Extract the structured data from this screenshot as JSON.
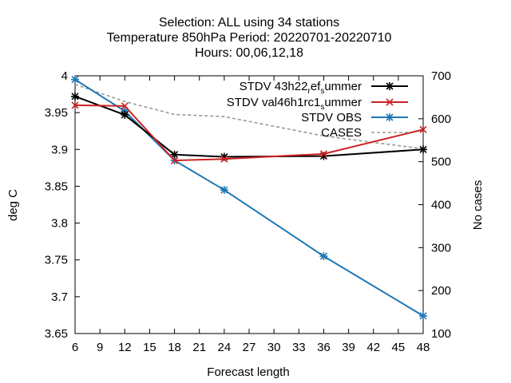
{
  "chart_data": {
    "type": "line",
    "title_lines": [
      "Selection: ALL using    34 stations",
      "Temperature 850hPa   Period: 20220701-20220710",
      "Hours:  00,06,12,18"
    ],
    "xlabel": "Forecast length",
    "ylabel": "deg C",
    "y2label": "No cases",
    "xlim": [
      6,
      48
    ],
    "ylim": [
      3.65,
      4.0
    ],
    "y2lim": [
      100,
      700
    ],
    "x_ticks": [
      6,
      9,
      12,
      15,
      18,
      21,
      24,
      27,
      30,
      33,
      36,
      39,
      42,
      45,
      48
    ],
    "y_ticks": [
      "3.65",
      "3.7",
      "3.75",
      "3.8",
      "3.85",
      "3.9",
      "3.95",
      "4"
    ],
    "y2_ticks": [
      100,
      200,
      300,
      400,
      500,
      600,
      700
    ],
    "grid": false,
    "legend_position": "top-right",
    "series": [
      {
        "label_parts": [
          [
            "STDV 43h22",
            ""
          ],
          [
            "r",
            "sub"
          ],
          [
            "ef",
            ""
          ],
          [
            "s",
            "sub"
          ],
          [
            "ummer",
            ""
          ]
        ],
        "color": "#000000",
        "marker": "star",
        "axis": "left",
        "x": [
          6,
          12,
          18,
          24,
          36,
          48
        ],
        "values": [
          3.972,
          3.947,
          3.893,
          3.89,
          3.891,
          3.9
        ]
      },
      {
        "label_parts": [
          [
            "STDV val46h1rc1",
            ""
          ],
          [
            "s",
            "sub"
          ],
          [
            "ummer",
            ""
          ]
        ],
        "color": "#cc2222",
        "marker": "x",
        "axis": "left",
        "x": [
          6,
          12,
          18,
          24,
          36,
          48
        ],
        "values": [
          3.96,
          3.959,
          3.885,
          3.887,
          3.894,
          3.927
        ]
      },
      {
        "label_parts": [
          [
            "STDV OBS",
            ""
          ]
        ],
        "color": "#1f77b4",
        "marker": "star",
        "axis": "left",
        "x": [
          6,
          12,
          18,
          24,
          36,
          48
        ],
        "values": [
          3.995,
          3.952,
          3.885,
          3.845,
          3.755,
          3.674
        ]
      },
      {
        "label_parts": [
          [
            "CASES",
            ""
          ]
        ],
        "color": "#999999",
        "dashed": true,
        "marker": "none",
        "axis": "right",
        "x": [
          6,
          12,
          18,
          24,
          36,
          48
        ],
        "values": [
          680,
          640,
          610,
          605,
          560,
          530
        ]
      }
    ]
  }
}
